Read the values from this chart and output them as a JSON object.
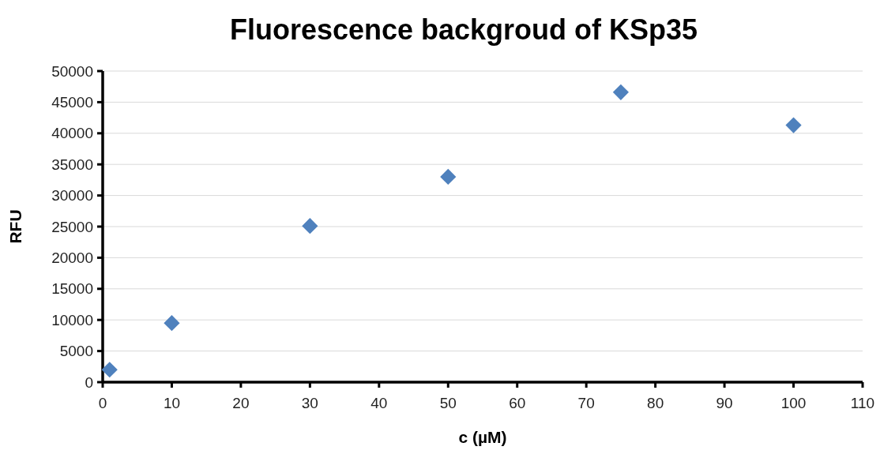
{
  "chart_data": {
    "type": "scatter",
    "title": "Fluorescence backgroud of KSp35",
    "xlabel": "c (µM)",
    "ylabel": "RFU",
    "x": [
      1,
      10,
      30,
      50,
      75,
      100
    ],
    "series": [
      {
        "color": "#4f81bd",
        "values": [
          2000,
          9500,
          25100,
          33000,
          46600,
          41300
        ]
      }
    ],
    "xlim": [
      0,
      110
    ],
    "xticks": [
      0,
      10,
      20,
      30,
      40,
      50,
      60,
      70,
      80,
      90,
      100,
      110
    ],
    "ylim": [
      0,
      50000
    ],
    "yticks": [
      0,
      5000,
      10000,
      15000,
      20000,
      25000,
      30000,
      35000,
      40000,
      45000,
      50000
    ],
    "grid": "y",
    "marker": "diamond"
  }
}
